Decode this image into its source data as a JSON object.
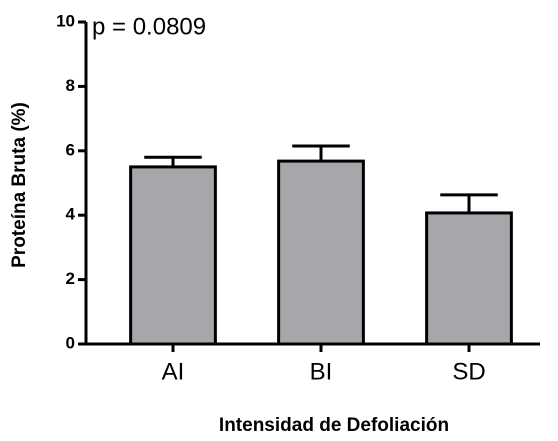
{
  "chart_data": {
    "type": "bar",
    "categories": [
      "AI",
      "BI",
      "SD"
    ],
    "values": [
      5.5,
      5.68,
      4.07
    ],
    "errors": [
      0.3,
      0.47,
      0.56
    ],
    "color": "#a7a6ab",
    "xlabel": "Intensidad de Defoliación",
    "ylabel": "Proteína Bruta (%)",
    "annotation": "p = 0.0809",
    "ylim": [
      0,
      10
    ],
    "yticks": [
      0,
      2,
      4,
      6,
      8,
      10
    ],
    "grid": false
  }
}
